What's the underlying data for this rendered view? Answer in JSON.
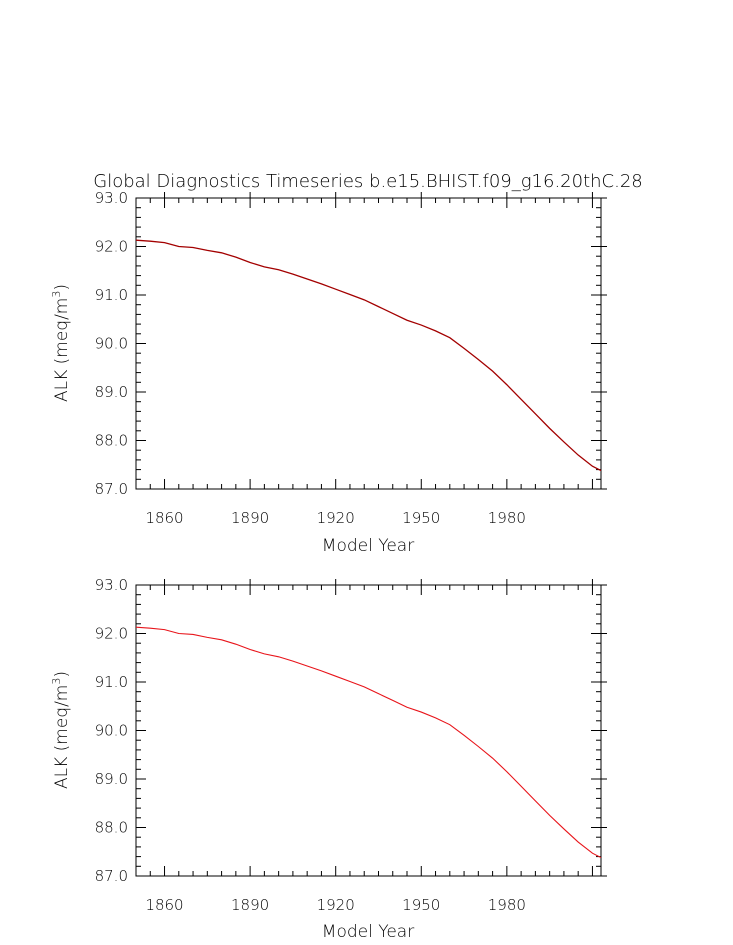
{
  "figure_title": "Global Diagnostics Timeseries b.e15.BHIST.f09_g16.20thC.28",
  "chart_data": [
    {
      "type": "line",
      "xlabel": "Model Year",
      "ylabel_main": "ALK (meq/m",
      "ylabel_sup": "3",
      "ylabel_close": ")",
      "xlim": [
        1850,
        2013
      ],
      "ylim": [
        87.0,
        93.0
      ],
      "x_ticks": [
        1860,
        1890,
        1920,
        1950,
        1980
      ],
      "y_ticks": [
        "87.0",
        "88.0",
        "89.0",
        "90.0",
        "91.0",
        "92.0",
        "93.0"
      ],
      "line_color": "#a30000",
      "series": [
        {
          "x": [
            1850,
            1855,
            1860,
            1865,
            1870,
            1875,
            1880,
            1885,
            1890,
            1895,
            1900,
            1905,
            1910,
            1915,
            1920,
            1925,
            1930,
            1935,
            1940,
            1945,
            1950,
            1955,
            1960,
            1965,
            1970,
            1975,
            1980,
            1985,
            1990,
            1995,
            2000,
            2005,
            2010,
            2013
          ],
          "y": [
            92.13,
            92.11,
            92.08,
            92.0,
            91.98,
            91.92,
            91.87,
            91.78,
            91.67,
            91.58,
            91.52,
            91.43,
            91.33,
            91.23,
            91.12,
            91.01,
            90.9,
            90.76,
            90.62,
            90.48,
            90.38,
            90.26,
            90.12,
            89.9,
            89.67,
            89.43,
            89.15,
            88.85,
            88.55,
            88.25,
            87.97,
            87.7,
            87.47,
            87.38
          ]
        }
      ]
    },
    {
      "type": "line",
      "xlabel": "Model Year",
      "ylabel_main": "ALK (meq/m",
      "ylabel_sup": "3",
      "ylabel_close": ")",
      "xlim": [
        1850,
        2013
      ],
      "ylim": [
        87.0,
        93.0
      ],
      "x_ticks": [
        1860,
        1890,
        1920,
        1950,
        1980
      ],
      "y_ticks": [
        "87.0",
        "88.0",
        "89.0",
        "90.0",
        "91.0",
        "92.0",
        "93.0"
      ],
      "line_color": "#e8141a",
      "series": [
        {
          "x": [
            1850,
            1855,
            1860,
            1865,
            1870,
            1875,
            1880,
            1885,
            1890,
            1895,
            1900,
            1905,
            1910,
            1915,
            1920,
            1925,
            1930,
            1935,
            1940,
            1945,
            1950,
            1955,
            1960,
            1965,
            1970,
            1975,
            1980,
            1985,
            1990,
            1995,
            2000,
            2005,
            2010,
            2013
          ],
          "y": [
            92.13,
            92.11,
            92.08,
            92.0,
            91.98,
            91.92,
            91.87,
            91.78,
            91.67,
            91.58,
            91.52,
            91.43,
            91.33,
            91.23,
            91.12,
            91.01,
            90.9,
            90.76,
            90.62,
            90.48,
            90.38,
            90.26,
            90.12,
            89.9,
            89.67,
            89.43,
            89.15,
            88.85,
            88.55,
            88.25,
            87.97,
            87.7,
            87.47,
            87.38
          ]
        }
      ]
    }
  ]
}
